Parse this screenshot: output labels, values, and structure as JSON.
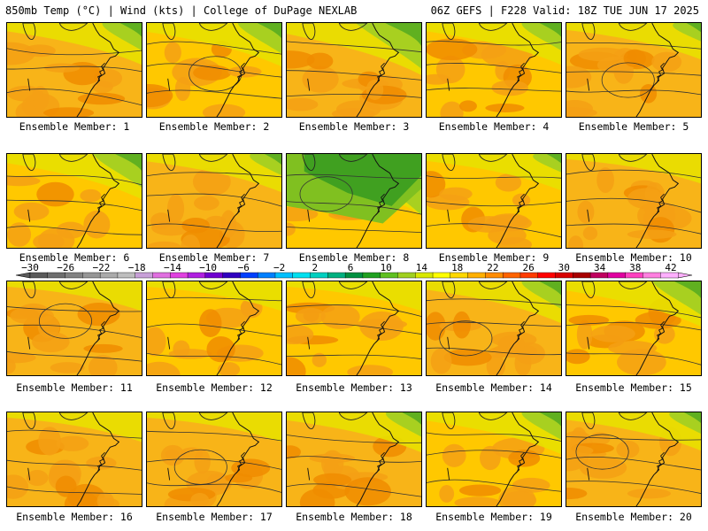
{
  "header": {
    "left": "850mb Temp (°C) | Wind (kts) | College of DuPage NEXLAB",
    "right": "06Z GEFS | F228 Valid: 18Z TUE JUN 17 2025"
  },
  "caption_prefix": "Ensemble Member:",
  "members": [
    {
      "number": "1",
      "warm": 0.6,
      "green_ne": 0.45
    },
    {
      "number": "2",
      "warm": 0.5,
      "green_ne": 0.5
    },
    {
      "number": "3",
      "warm": 0.55,
      "green_ne": 0.75
    },
    {
      "number": "4",
      "warm": 0.45,
      "green_ne": 0.45
    },
    {
      "number": "5",
      "warm": 0.55,
      "green_ne": 0.3
    },
    {
      "number": "6",
      "warm": 0.3,
      "green_ne": 0.55
    },
    {
      "number": "7",
      "warm": 0.6,
      "green_ne": 0.35
    },
    {
      "number": "8",
      "warm": 0.1,
      "green_ne": 1.0
    },
    {
      "number": "9",
      "warm": 0.5,
      "green_ne": 0.3
    },
    {
      "number": "10",
      "warm": 0.65,
      "green_ne": 0.1
    },
    {
      "number": "11",
      "warm": 0.55,
      "green_ne": 0.1
    },
    {
      "number": "12",
      "warm": 0.5,
      "green_ne": 0.1
    },
    {
      "number": "13",
      "warm": 0.5,
      "green_ne": 0.1
    },
    {
      "number": "14",
      "warm": 0.6,
      "green_ne": 0.45
    },
    {
      "number": "15",
      "warm": 0.45,
      "green_ne": 0.55
    },
    {
      "number": "16",
      "warm": 0.65,
      "green_ne": 0.1
    },
    {
      "number": "17",
      "warm": 0.65,
      "green_ne": 0.1
    },
    {
      "number": "18",
      "warm": 0.6,
      "green_ne": 0.4
    },
    {
      "number": "19",
      "warm": 0.4,
      "green_ne": 0.45
    },
    {
      "number": "20",
      "warm": 0.55,
      "green_ne": 0.35
    }
  ],
  "colorbar": {
    "labels": [
      "−30",
      "−26",
      "−22",
      "−18",
      "−14",
      "−10",
      "−6",
      "−2",
      "2",
      "6",
      "10",
      "14",
      "18",
      "22",
      "26",
      "30",
      "34",
      "38",
      "42"
    ],
    "colors": [
      "#5a5a5a",
      "#6e6e6e",
      "#828282",
      "#969696",
      "#aaaaaa",
      "#bebebe",
      "#c8a0d8",
      "#e070e0",
      "#e040e0",
      "#b020e0",
      "#7000d0",
      "#3000c0",
      "#0040ff",
      "#0080ff",
      "#00c0ff",
      "#00e0f0",
      "#00d0c0",
      "#00b080",
      "#009040",
      "#20a020",
      "#60c020",
      "#a0d020",
      "#d8e800",
      "#ffff00",
      "#ffd800",
      "#ffb000",
      "#ff8c00",
      "#ff6400",
      "#ff3c00",
      "#ff0000",
      "#d80000",
      "#a80000",
      "#c00060",
      "#e000a0",
      "#ff40c0",
      "#ff80e0",
      "#ffb0ff"
    ]
  }
}
